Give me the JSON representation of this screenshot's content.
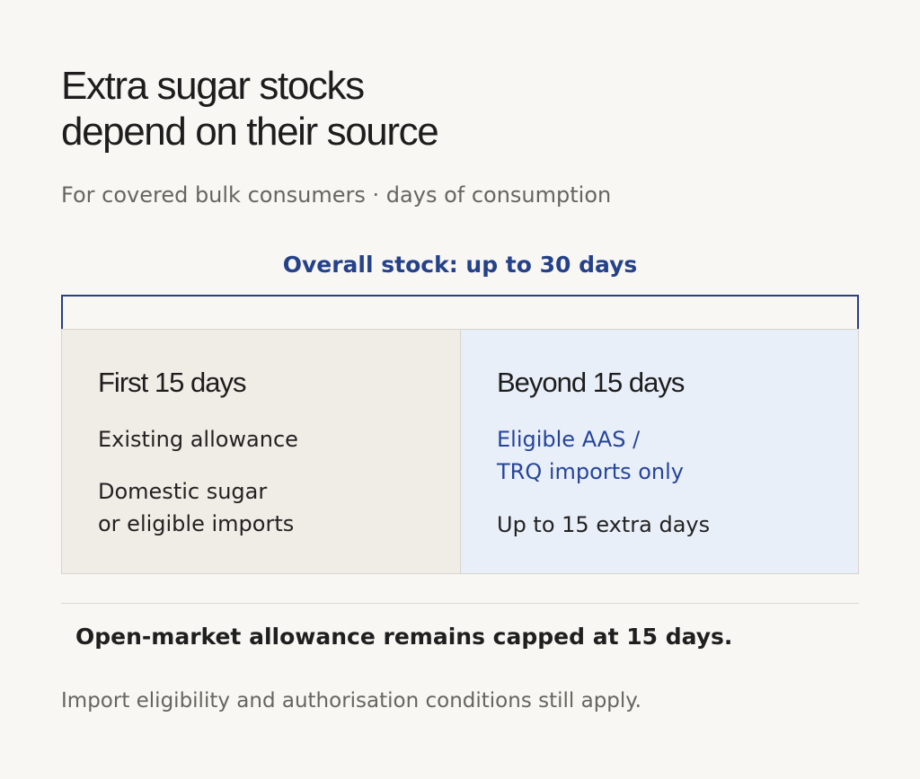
{
  "title": {
    "line1": "Extra sugar stocks",
    "line2": "depend on their source"
  },
  "subtitle": "For covered bulk consumers · days of consumption",
  "overall": {
    "label": "Overall stock: up to 30 days"
  },
  "panels": [
    {
      "heading": "First 15 days",
      "lines": [
        {
          "text": "Existing allowance"
        },
        {
          "line1": "Domestic sugar",
          "line2": "or eligible imports"
        }
      ]
    },
    {
      "heading": "Beyond 15 days",
      "lines": [
        {
          "line1": "Eligible AAS /",
          "line2": "TRQ imports only"
        },
        {
          "text": "Up to 15 extra days"
        }
      ]
    }
  ],
  "note": "Open-market allowance remains capped at 15 days.",
  "footnote": "Import eligibility and authorisation conditions still apply.",
  "colors": {
    "background": "#f8f7f3",
    "accent": "#26459a",
    "left_panel": "#f0ede6",
    "right_panel": "#e9eff9"
  }
}
